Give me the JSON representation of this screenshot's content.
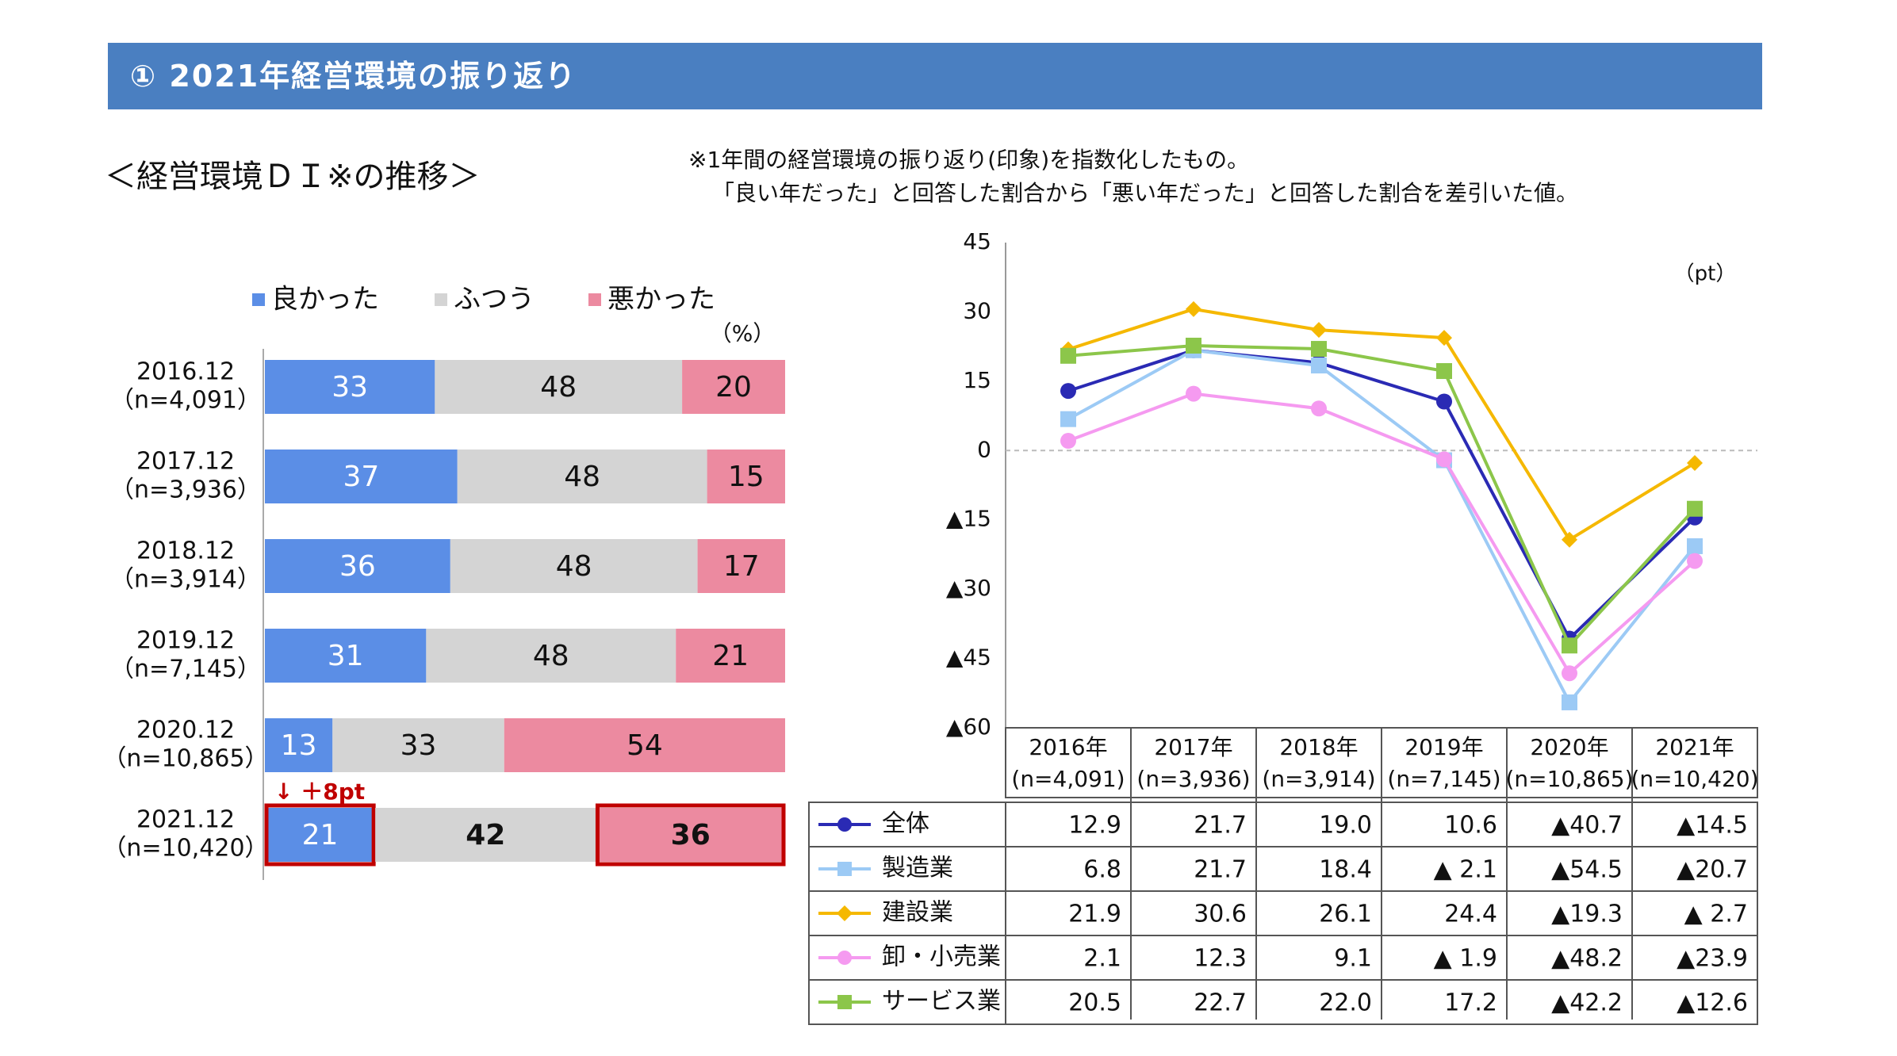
{
  "header": {
    "title": "①  2021年経営環境の振り返り"
  },
  "section_title": "＜経営環境ＤＩ※の推移＞",
  "notes": {
    "line1": "※1年間の経営環境の振り返り(印象)を指数化したもの。",
    "line2": "「良い年だった」と回答した割合から「悪い年だった」と回答した割合を差引いた値。"
  },
  "colors": {
    "banner": "#4a7fc1",
    "good": "#5b8ee6",
    "normal": "#d4d4d4",
    "bad": "#ec8aa0",
    "highlight": "#c00000"
  },
  "chart_data": [
    {
      "type": "bar",
      "stacked": true,
      "orientation": "horizontal",
      "unit_label": "（%）",
      "categories": [
        "2016.12",
        "2017.12",
        "2018.12",
        "2019.12",
        "2020.12",
        "2021.12"
      ],
      "sample_sizes": [
        "（n=4,091）",
        "（n=3,936）",
        "（n=3,914）",
        "（n=7,145）",
        "（n=10,865）",
        "（n=10,420）"
      ],
      "series": [
        {
          "name": "良かった",
          "color": "#5b8ee6",
          "values": [
            33,
            37,
            36,
            31,
            13,
            21
          ]
        },
        {
          "name": "ふつう",
          "color": "#d4d4d4",
          "values": [
            48,
            48,
            48,
            48,
            33,
            42
          ]
        },
        {
          "name": "悪かった",
          "color": "#ec8aa0",
          "values": [
            20,
            15,
            17,
            21,
            54,
            36
          ]
        }
      ],
      "annotation": "↓ ＋8pt",
      "legend_position": "top"
    },
    {
      "type": "line",
      "unit_label": "（pt）",
      "x": [
        "2016年",
        "2017年",
        "2018年",
        "2019年",
        "2020年",
        "2021年"
      ],
      "x_sublabels": [
        "(n=4,091)",
        "(n=3,936)",
        "(n=3,914)",
        "(n=7,145)",
        "(n=10,865)",
        "(n=10,420)"
      ],
      "ylim": [
        -60,
        45
      ],
      "yticks": [
        45,
        30,
        15,
        0,
        -15,
        -30,
        -45,
        -60
      ],
      "ytick_labels": [
        "45",
        "30",
        "15",
        "0",
        "▲15",
        "▲30",
        "▲45",
        "▲60"
      ],
      "zero_line": "dashed",
      "series": [
        {
          "name": "全体",
          "color": "#2a2ab4",
          "marker": "circle",
          "values": [
            12.9,
            21.7,
            19.0,
            10.6,
            -40.7,
            -14.5
          ],
          "labels": [
            "12.9",
            "21.7",
            "19.0",
            "10.6",
            "▲40.7",
            "▲14.5"
          ]
        },
        {
          "name": "製造業",
          "color": "#9ccaf5",
          "marker": "square",
          "values": [
            6.8,
            21.7,
            18.4,
            -2.1,
            -54.5,
            -20.7
          ],
          "labels": [
            "6.8",
            "21.7",
            "18.4",
            "▲ 2.1",
            "▲54.5",
            "▲20.7"
          ]
        },
        {
          "name": "建設業",
          "color": "#f5b800",
          "marker": "diamond",
          "values": [
            21.9,
            30.6,
            26.1,
            24.4,
            -19.3,
            -2.7
          ],
          "labels": [
            "21.9",
            "30.6",
            "26.1",
            "24.4",
            "▲19.3",
            "▲  2.7"
          ]
        },
        {
          "name": "卸・小売業",
          "color": "#f59af0",
          "marker": "circle",
          "values": [
            2.1,
            12.3,
            9.1,
            -1.9,
            -48.2,
            -23.9
          ],
          "labels": [
            "2.1",
            "12.3",
            "9.1",
            "▲ 1.9",
            "▲48.2",
            "▲23.9"
          ]
        },
        {
          "name": "サービス業",
          "color": "#8cc64a",
          "marker": "square",
          "values": [
            20.5,
            22.7,
            22.0,
            17.2,
            -42.2,
            -12.6
          ],
          "labels": [
            "20.5",
            "22.7",
            "22.0",
            "17.2",
            "▲42.2",
            "▲12.6"
          ]
        }
      ]
    }
  ]
}
